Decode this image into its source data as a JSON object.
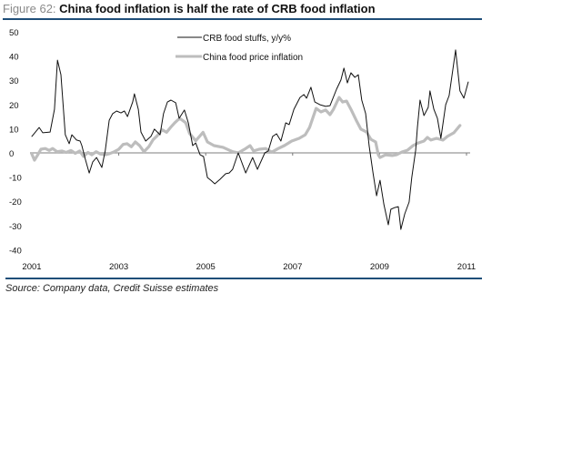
{
  "figure": {
    "label": "Figure 62:",
    "title": "China food inflation is half the rate of CRB food inflation",
    "source": "Source: Company data, Credit Suisse estimates"
  },
  "colors": {
    "rule": "#1f4e79",
    "crb": "#111111",
    "china": "#bdbdbd",
    "axis": "#a8a8a8"
  },
  "chart_data": {
    "type": "line",
    "title": "China food inflation is half the rate of CRB food inflation",
    "xlabel": "",
    "ylabel": "",
    "xlim": [
      2001,
      2011.1
    ],
    "ylim": [
      -40,
      50
    ],
    "grid": false,
    "legend_position": "top-center",
    "x_ticks": [
      "2001",
      "2003",
      "2005",
      "2007",
      "2009",
      "2011"
    ],
    "x_tick_values": [
      2001,
      2003,
      2005,
      2007,
      2009,
      2011
    ],
    "y_ticks": [
      "50",
      "40",
      "30",
      "20",
      "10",
      "0",
      "-10",
      "-20",
      "-30",
      "-40"
    ],
    "y_tick_values": [
      50,
      40,
      30,
      20,
      10,
      0,
      -10,
      -20,
      -30,
      -40
    ],
    "series": [
      {
        "name": "CRB food stuffs, y/y%",
        "style": "thin-black",
        "points": [
          [
            2001.0,
            6.8
          ],
          [
            2001.17,
            10.5
          ],
          [
            2001.25,
            8.3
          ],
          [
            2001.42,
            8.6
          ],
          [
            2001.52,
            18
          ],
          [
            2001.59,
            38.3
          ],
          [
            2001.67,
            32.3
          ],
          [
            2001.77,
            7.5
          ],
          [
            2001.86,
            3.8
          ],
          [
            2001.92,
            7.5
          ],
          [
            2002.03,
            5.3
          ],
          [
            2002.11,
            4.9
          ],
          [
            2002.15,
            3
          ],
          [
            2002.23,
            -2.6
          ],
          [
            2002.32,
            -8.3
          ],
          [
            2002.4,
            -3.8
          ],
          [
            2002.49,
            -1.9
          ],
          [
            2002.61,
            -6
          ],
          [
            2002.69,
            1.1
          ],
          [
            2002.78,
            13.5
          ],
          [
            2002.86,
            16.2
          ],
          [
            2002.95,
            17.3
          ],
          [
            2003.05,
            16.5
          ],
          [
            2003.13,
            17.3
          ],
          [
            2003.2,
            15
          ],
          [
            2003.32,
            21
          ],
          [
            2003.36,
            24.4
          ],
          [
            2003.45,
            18
          ],
          [
            2003.51,
            8.6
          ],
          [
            2003.62,
            4.9
          ],
          [
            2003.74,
            6.8
          ],
          [
            2003.82,
            9.8
          ],
          [
            2003.95,
            7.5
          ],
          [
            2004.03,
            16.2
          ],
          [
            2004.12,
            21
          ],
          [
            2004.2,
            21.8
          ],
          [
            2004.31,
            20.7
          ],
          [
            2004.39,
            14.3
          ],
          [
            2004.51,
            17.7
          ],
          [
            2004.6,
            12.4
          ],
          [
            2004.7,
            3
          ],
          [
            2004.77,
            4.1
          ],
          [
            2004.87,
            -0.8
          ],
          [
            2004.95,
            -1.5
          ],
          [
            2005.04,
            -10.2
          ],
          [
            2005.12,
            -11.3
          ],
          [
            2005.21,
            -12.8
          ],
          [
            2005.33,
            -10.9
          ],
          [
            2005.46,
            -8.6
          ],
          [
            2005.54,
            -8.3
          ],
          [
            2005.62,
            -6.8
          ],
          [
            2005.75,
            0
          ],
          [
            2005.92,
            -8.3
          ],
          [
            2006.08,
            -1.9
          ],
          [
            2006.19,
            -6.8
          ],
          [
            2006.36,
            0
          ],
          [
            2006.44,
            0.8
          ],
          [
            2006.54,
            6.8
          ],
          [
            2006.63,
            7.9
          ],
          [
            2006.73,
            4.9
          ],
          [
            2006.84,
            12.4
          ],
          [
            2006.92,
            11.7
          ],
          [
            2007.03,
            18
          ],
          [
            2007.17,
            22.9
          ],
          [
            2007.26,
            24.1
          ],
          [
            2007.32,
            22.6
          ],
          [
            2007.42,
            27.1
          ],
          [
            2007.51,
            21
          ],
          [
            2007.63,
            19.9
          ],
          [
            2007.76,
            19.2
          ],
          [
            2007.86,
            19.5
          ],
          [
            2008.01,
            26.3
          ],
          [
            2008.11,
            30.1
          ],
          [
            2008.18,
            35
          ],
          [
            2008.26,
            28.9
          ],
          [
            2008.34,
            33.1
          ],
          [
            2008.43,
            31.2
          ],
          [
            2008.51,
            32.3
          ],
          [
            2008.59,
            21.8
          ],
          [
            2008.68,
            16.2
          ],
          [
            2008.76,
            3
          ],
          [
            2008.85,
            -8.3
          ],
          [
            2008.93,
            -17.7
          ],
          [
            2009.01,
            -11.3
          ],
          [
            2009.1,
            -21.4
          ],
          [
            2009.2,
            -29.7
          ],
          [
            2009.26,
            -23.3
          ],
          [
            2009.35,
            -22.6
          ],
          [
            2009.43,
            -22.2
          ],
          [
            2009.49,
            -31.6
          ],
          [
            2009.58,
            -25.2
          ],
          [
            2009.68,
            -20.3
          ],
          [
            2009.74,
            -10.2
          ],
          [
            2009.83,
            1.1
          ],
          [
            2009.87,
            10.5
          ],
          [
            2009.93,
            21.8
          ],
          [
            2010.02,
            15.4
          ],
          [
            2010.12,
            18.8
          ],
          [
            2010.16,
            25.6
          ],
          [
            2010.25,
            18
          ],
          [
            2010.33,
            14.3
          ],
          [
            2010.41,
            6
          ],
          [
            2010.52,
            19.9
          ],
          [
            2010.6,
            23.7
          ],
          [
            2010.69,
            35
          ],
          [
            2010.75,
            42.5
          ],
          [
            2010.85,
            25.6
          ],
          [
            2010.94,
            22.6
          ],
          [
            2011.04,
            29.3
          ]
        ]
      },
      {
        "name": "China food price inflation",
        "style": "thick-gray",
        "points": [
          [
            2001.0,
            -0.5
          ],
          [
            2001.06,
            -3
          ],
          [
            2001.13,
            -1
          ],
          [
            2001.21,
            1.5
          ],
          [
            2001.31,
            1.8
          ],
          [
            2001.4,
            1.0
          ],
          [
            2001.48,
            1.8
          ],
          [
            2001.58,
            0.5
          ],
          [
            2001.69,
            0.8
          ],
          [
            2001.79,
            0.2
          ],
          [
            2001.9,
            1.0
          ],
          [
            2002.0,
            -0.2
          ],
          [
            2002.1,
            0.8
          ],
          [
            2002.19,
            -1.5
          ],
          [
            2002.29,
            0.2
          ],
          [
            2002.38,
            -0.8
          ],
          [
            2002.48,
            0.5
          ],
          [
            2002.58,
            -0.5
          ],
          [
            2002.69,
            -0.8
          ],
          [
            2002.79,
            -0.3
          ],
          [
            2002.9,
            0.5
          ],
          [
            2003.0,
            1.5
          ],
          [
            2003.1,
            3.5
          ],
          [
            2003.19,
            3.8
          ],
          [
            2003.29,
            2.5
          ],
          [
            2003.38,
            4.5
          ],
          [
            2003.48,
            3.0
          ],
          [
            2003.58,
            0.5
          ],
          [
            2003.69,
            2.5
          ],
          [
            2003.79,
            5.5
          ],
          [
            2003.88,
            7.0
          ],
          [
            2004.0,
            9.5
          ],
          [
            2004.1,
            8.5
          ],
          [
            2004.19,
            10.5
          ],
          [
            2004.29,
            12.5
          ],
          [
            2004.4,
            14.3
          ],
          [
            2004.54,
            12.5
          ],
          [
            2004.63,
            8
          ],
          [
            2004.77,
            5
          ],
          [
            2004.94,
            8.5
          ],
          [
            2005.04,
            4.5
          ],
          [
            2005.19,
            3
          ],
          [
            2005.4,
            2.3
          ],
          [
            2005.62,
            0.5
          ],
          [
            2005.75,
            0
          ],
          [
            2005.92,
            1.8
          ],
          [
            2006.02,
            3
          ],
          [
            2006.1,
            0.8
          ],
          [
            2006.23,
            1.5
          ],
          [
            2006.38,
            1.8
          ],
          [
            2006.52,
            0.3
          ],
          [
            2006.67,
            1.8
          ],
          [
            2006.81,
            3
          ],
          [
            2006.98,
            4.9
          ],
          [
            2007.15,
            6
          ],
          [
            2007.29,
            7.5
          ],
          [
            2007.39,
            10.5
          ],
          [
            2007.54,
            18.4
          ],
          [
            2007.65,
            16.9
          ],
          [
            2007.76,
            17.7
          ],
          [
            2007.86,
            15.8
          ],
          [
            2007.94,
            18
          ],
          [
            2008.07,
            22.9
          ],
          [
            2008.15,
            21
          ],
          [
            2008.24,
            21.4
          ],
          [
            2008.34,
            18
          ],
          [
            2008.47,
            13.2
          ],
          [
            2008.57,
            9.8
          ],
          [
            2008.7,
            8.6
          ],
          [
            2008.8,
            5.6
          ],
          [
            2008.91,
            4.5
          ],
          [
            2008.97,
            -0.8
          ],
          [
            2009.01,
            -1.9
          ],
          [
            2009.14,
            -0.8
          ],
          [
            2009.29,
            -1.1
          ],
          [
            2009.39,
            -0.8
          ],
          [
            2009.52,
            0.4
          ],
          [
            2009.64,
            1.1
          ],
          [
            2009.77,
            3
          ],
          [
            2009.89,
            4.1
          ],
          [
            2010.02,
            4.9
          ],
          [
            2010.1,
            6.4
          ],
          [
            2010.18,
            5.3
          ],
          [
            2010.31,
            6
          ],
          [
            2010.46,
            5.3
          ],
          [
            2010.56,
            6.8
          ],
          [
            2010.71,
            8.3
          ],
          [
            2010.85,
            11.3
          ]
        ]
      }
    ]
  }
}
